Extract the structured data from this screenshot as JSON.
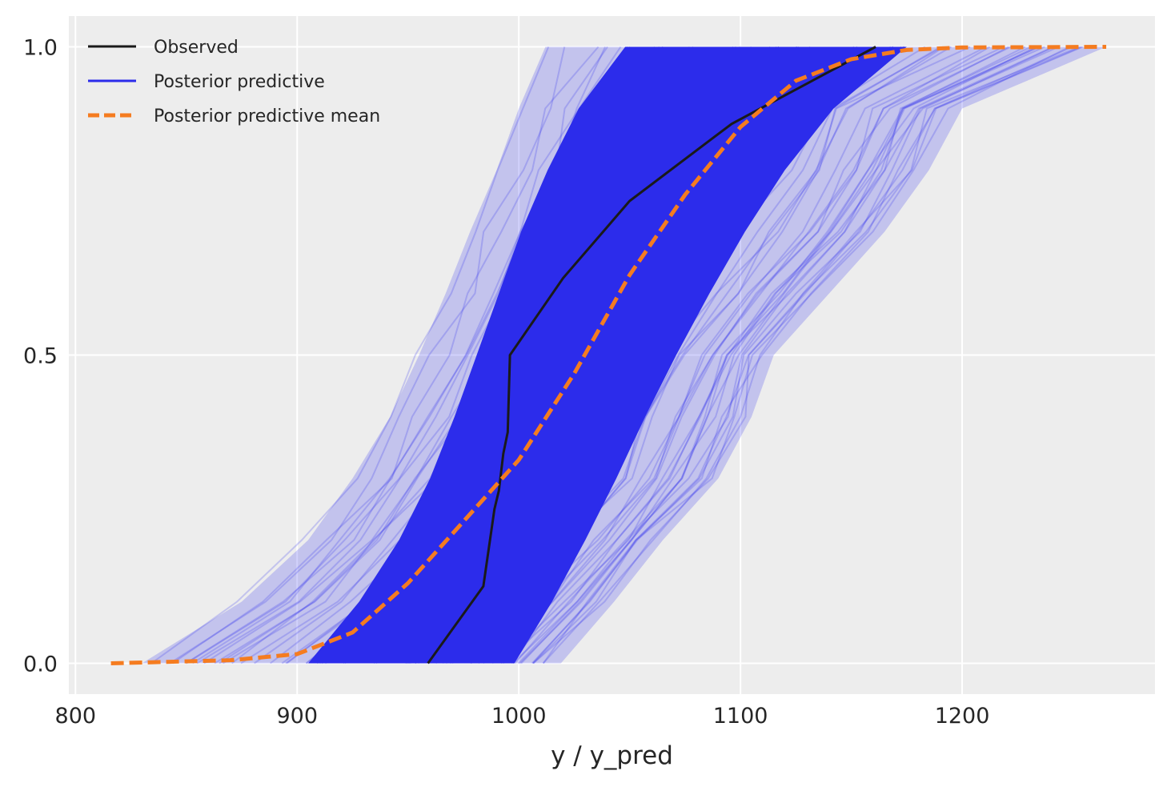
{
  "chart_data": {
    "type": "line",
    "title": "",
    "xlabel": "y / y_pred",
    "ylabel": "",
    "xlim": [
      797,
      1287
    ],
    "ylim": [
      -0.05,
      1.05
    ],
    "xticks": [
      800,
      900,
      1000,
      1100,
      1200
    ],
    "xtick_labels": [
      "800",
      "900",
      "1000",
      "1100",
      "1200"
    ],
    "yticks": [
      0.0,
      0.5,
      1.0
    ],
    "ytick_labels": [
      "0.0",
      "0.5",
      "1.0"
    ],
    "grid": true,
    "legend_position": "upper-left",
    "colors": {
      "background": "#EDEDED",
      "grid": "#FFFFFF",
      "observed": "#1A1A1A",
      "posterior_predictive": "#2C2CEB",
      "posterior_predictive_mean": "#F57C20"
    },
    "series": [
      {
        "name": "Observed",
        "style": "solid",
        "x": [
          959,
          984,
          989,
          991,
          993,
          995,
          996,
          1020,
          1050,
          1096,
          1161
        ],
        "y": [
          0.0,
          0.125,
          0.25,
          0.28,
          0.34,
          0.375,
          0.5,
          0.625,
          0.75,
          0.875,
          1.0
        ]
      },
      {
        "name": "Posterior predictive",
        "style": "solid-band",
        "samples_note_free": true,
        "inner_band": {
          "y": [
            0.0,
            0.1,
            0.2,
            0.3,
            0.4,
            0.5,
            0.6,
            0.7,
            0.8,
            0.9,
            1.0
          ],
          "x_low": [
            905,
            928,
            946,
            960,
            971,
            981,
            991,
            1001,
            1013,
            1027,
            1048
          ],
          "x_high": [
            998,
            1015,
            1030,
            1044,
            1057,
            1071,
            1086,
            1102,
            1120,
            1142,
            1175
          ]
        },
        "outer_band": {
          "y": [
            0.0,
            0.1,
            0.2,
            0.3,
            0.4,
            0.5,
            0.6,
            0.7,
            0.8,
            0.9,
            1.0
          ],
          "x_low": [
            830,
            875,
            905,
            925,
            942,
            955,
            967,
            978,
            990,
            1000,
            1012
          ],
          "x_high": [
            1019,
            1043,
            1065,
            1090,
            1105,
            1115,
            1140,
            1165,
            1185,
            1200,
            1265
          ]
        }
      },
      {
        "name": "Posterior predictive mean",
        "style": "dashed",
        "x": [
          816,
          870,
          900,
          925,
          950,
          975,
          1000,
          1025,
          1050,
          1075,
          1100,
          1125,
          1150,
          1175,
          1200,
          1265
        ],
        "y": [
          0.0,
          0.005,
          0.015,
          0.05,
          0.13,
          0.23,
          0.33,
          0.47,
          0.63,
          0.76,
          0.87,
          0.945,
          0.98,
          0.995,
          0.999,
          1.0
        ]
      }
    ]
  }
}
